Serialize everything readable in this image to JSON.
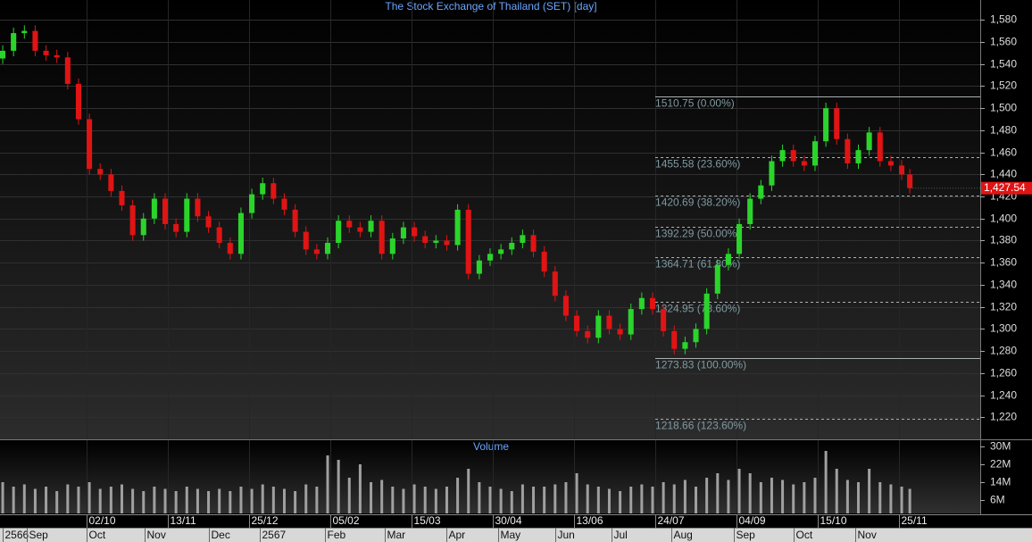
{
  "chart_data": {
    "type": "candlestick",
    "title": "The Stock Exchange of Thailand (SET) [day]",
    "x": [
      0,
      4,
      8,
      12,
      16,
      20,
      24,
      28,
      32,
      36,
      40,
      44,
      48,
      52,
      56,
      60,
      64,
      68,
      72,
      76,
      80,
      84,
      88,
      92,
      96,
      100,
      104,
      108,
      112,
      116,
      120,
      124,
      128,
      132,
      136,
      140,
      144,
      148,
      152,
      156,
      160,
      164,
      168,
      172,
      176,
      180,
      184,
      188,
      192,
      196,
      200,
      204,
      208,
      212,
      216,
      220,
      224,
      228,
      232,
      236,
      240,
      244,
      248,
      252,
      256,
      260,
      264,
      268,
      272,
      276,
      280,
      284,
      288,
      292,
      296,
      300,
      304,
      308,
      312,
      316,
      320,
      324,
      328,
      332,
      335
    ],
    "open": [
      1545,
      1552,
      1568,
      1570,
      1552,
      1548,
      1546,
      1522,
      1490,
      1445,
      1440,
      1425,
      1412,
      1385,
      1400,
      1418,
      1395,
      1388,
      1418,
      1402,
      1392,
      1378,
      1368,
      1405,
      1422,
      1432,
      1418,
      1408,
      1388,
      1372,
      1368,
      1378,
      1398,
      1392,
      1388,
      1398,
      1368,
      1382,
      1392,
      1384,
      1378,
      1380,
      1376,
      1408,
      1350,
      1362,
      1368,
      1372,
      1378,
      1385,
      1370,
      1352,
      1330,
      1312,
      1298,
      1292,
      1312,
      1300,
      1295,
      1318,
      1328,
      1318,
      1298,
      1282,
      1288,
      1300,
      1332,
      1358,
      1368,
      1395,
      1418,
      1430,
      1452,
      1462,
      1452,
      1448,
      1470,
      1500,
      1472,
      1450,
      1462,
      1478,
      1452,
      1448,
      1440
    ],
    "high": [
      1557,
      1573,
      1575,
      1575,
      1557,
      1553,
      1551,
      1527,
      1495,
      1450,
      1445,
      1430,
      1417,
      1405,
      1423,
      1423,
      1400,
      1423,
      1423,
      1407,
      1397,
      1383,
      1410,
      1427,
      1437,
      1437,
      1423,
      1413,
      1393,
      1377,
      1383,
      1403,
      1403,
      1397,
      1403,
      1403,
      1387,
      1397,
      1397,
      1389,
      1385,
      1385,
      1413,
      1413,
      1367,
      1373,
      1377,
      1383,
      1390,
      1390,
      1375,
      1357,
      1335,
      1317,
      1303,
      1317,
      1317,
      1305,
      1323,
      1333,
      1333,
      1323,
      1303,
      1293,
      1305,
      1337,
      1363,
      1373,
      1400,
      1423,
      1435,
      1457,
      1467,
      1467,
      1457,
      1475,
      1505,
      1505,
      1477,
      1467,
      1483,
      1483,
      1457,
      1453,
      1445
    ],
    "low": [
      1540,
      1547,
      1563,
      1547,
      1543,
      1541,
      1517,
      1485,
      1440,
      1435,
      1420,
      1407,
      1380,
      1380,
      1395,
      1390,
      1383,
      1383,
      1397,
      1387,
      1373,
      1363,
      1363,
      1400,
      1417,
      1413,
      1403,
      1383,
      1367,
      1363,
      1363,
      1373,
      1387,
      1383,
      1383,
      1363,
      1363,
      1377,
      1379,
      1373,
      1373,
      1371,
      1371,
      1345,
      1345,
      1357,
      1363,
      1367,
      1373,
      1365,
      1347,
      1325,
      1307,
      1293,
      1287,
      1287,
      1295,
      1290,
      1290,
      1313,
      1313,
      1293,
      1277,
      1277,
      1283,
      1295,
      1327,
      1353,
      1363,
      1390,
      1413,
      1425,
      1447,
      1447,
      1443,
      1443,
      1465,
      1467,
      1445,
      1445,
      1457,
      1447,
      1443,
      1435,
      1422.54
    ],
    "close": [
      1552,
      1568,
      1570,
      1552,
      1548,
      1546,
      1522,
      1490,
      1445,
      1440,
      1425,
      1412,
      1385,
      1400,
      1418,
      1395,
      1388,
      1418,
      1402,
      1392,
      1378,
      1368,
      1405,
      1422,
      1432,
      1418,
      1408,
      1388,
      1372,
      1368,
      1378,
      1398,
      1392,
      1388,
      1398,
      1368,
      1382,
      1392,
      1384,
      1378,
      1380,
      1376,
      1408,
      1350,
      1362,
      1368,
      1372,
      1378,
      1385,
      1370,
      1352,
      1330,
      1312,
      1298,
      1292,
      1312,
      1300,
      1295,
      1318,
      1328,
      1318,
      1298,
      1282,
      1288,
      1300,
      1332,
      1358,
      1368,
      1395,
      1418,
      1430,
      1452,
      1462,
      1452,
      1448,
      1470,
      1500,
      1472,
      1450,
      1462,
      1478,
      1452,
      1448,
      1440,
      1427.54
    ],
    "up_color": "#2bd42b",
    "down_color": "#e01414",
    "xlim": [
      -1,
      361
    ],
    "ylim": [
      1200,
      1598
    ],
    "yticks": [
      {
        "value": 1220,
        "label": "1,220"
      },
      {
        "value": 1240,
        "label": "1,240"
      },
      {
        "value": 1260,
        "label": "1,260"
      },
      {
        "value": 1280,
        "label": "1,280"
      },
      {
        "value": 1300,
        "label": "1,300"
      },
      {
        "value": 1320,
        "label": "1,320"
      },
      {
        "value": 1340,
        "label": "1,340"
      },
      {
        "value": 1360,
        "label": "1,360"
      },
      {
        "value": 1380,
        "label": "1,380"
      },
      {
        "value": 1400,
        "label": "1,400"
      },
      {
        "value": 1420,
        "label": "1,420"
      },
      {
        "value": 1440,
        "label": "1,440"
      },
      {
        "value": 1460,
        "label": "1,460"
      },
      {
        "value": 1480,
        "label": "1,480"
      },
      {
        "value": 1500,
        "label": "1,500"
      },
      {
        "value": 1520,
        "label": "1,520"
      },
      {
        "value": 1540,
        "label": "1,540"
      },
      {
        "value": 1560,
        "label": "1,560"
      },
      {
        "value": 1580,
        "label": "1,580"
      }
    ],
    "xticks": [
      {
        "value": 31,
        "label": "02/10"
      },
      {
        "value": 61,
        "label": "13/11"
      },
      {
        "value": 91,
        "label": "25/12"
      },
      {
        "value": 121,
        "label": "05/02"
      },
      {
        "value": 151,
        "label": "15/03"
      },
      {
        "value": 181,
        "label": "30/04"
      },
      {
        "value": 211,
        "label": "13/06"
      },
      {
        "value": 241,
        "label": "24/07"
      },
      {
        "value": 271,
        "label": "04/09"
      },
      {
        "value": 301,
        "label": "15/10"
      },
      {
        "value": 331,
        "label": "25/11"
      }
    ],
    "month_ticks": [
      {
        "value": 0,
        "label": "2566"
      },
      {
        "value": 9,
        "label": "Sep"
      },
      {
        "value": 31,
        "label": "Oct"
      },
      {
        "value": 52.5,
        "label": "Nov"
      },
      {
        "value": 76,
        "label": "Dec"
      },
      {
        "value": 95,
        "label": "2567"
      },
      {
        "value": 119,
        "label": "Feb"
      },
      {
        "value": 141,
        "label": "Mar"
      },
      {
        "value": 164,
        "label": "Apr"
      },
      {
        "value": 183,
        "label": "May"
      },
      {
        "value": 204,
        "label": "Jun"
      },
      {
        "value": 225,
        "label": "Jul"
      },
      {
        "value": 247,
        "label": "Aug"
      },
      {
        "value": 270,
        "label": "Sep"
      },
      {
        "value": 292,
        "label": "Oct"
      },
      {
        "value": 315,
        "label": "Nov"
      }
    ],
    "grid": true,
    "last_price": {
      "value": 1427.54,
      "label": "1,427.54"
    },
    "fibonacci": {
      "start_x": 241,
      "color": "#aab0b0",
      "label_color": "#7f9aa3",
      "levels": [
        {
          "value": 1510.75,
          "label": "1510.75 (0.00%)",
          "style": "solid"
        },
        {
          "value": 1455.58,
          "label": "1455.58 (23.60%)",
          "style": "dashed"
        },
        {
          "value": 1420.69,
          "label": "1420.69 (38.20%)",
          "style": "dashed"
        },
        {
          "value": 1392.29,
          "label": "1392.29 (50.00%)",
          "style": "dashed"
        },
        {
          "value": 1364.71,
          "label": "1364.71 (61.80%)",
          "style": "dashed"
        },
        {
          "value": 1324.95,
          "label": "1324.95 (78.60%)",
          "style": "dashed"
        },
        {
          "value": 1273.83,
          "label": "1273.83 (100.00%)",
          "style": "solid"
        },
        {
          "value": 1218.66,
          "label": "1218.66 (123.60%)",
          "style": "dashed"
        }
      ]
    },
    "volume": {
      "title": "Volume",
      "color": "#a0a0a0",
      "values": [
        14000000,
        12000000,
        13000000,
        11000000,
        12000000,
        10000000,
        13000000,
        12000000,
        14000000,
        11000000,
        12000000,
        13000000,
        11000000,
        10000000,
        12000000,
        11000000,
        10000000,
        12000000,
        11000000,
        10000000,
        11000000,
        10000000,
        12000000,
        11000000,
        13000000,
        12000000,
        11000000,
        10000000,
        13000000,
        12000000,
        26000000,
        24000000,
        16000000,
        22000000,
        14000000,
        15000000,
        12000000,
        11000000,
        13000000,
        12000000,
        11000000,
        12000000,
        16000000,
        20000000,
        14000000,
        12000000,
        11000000,
        10000000,
        13000000,
        12000000,
        12000000,
        13000000,
        14000000,
        18000000,
        13000000,
        12000000,
        11000000,
        10000000,
        12000000,
        13000000,
        12000000,
        14000000,
        13000000,
        15000000,
        12000000,
        16000000,
        18000000,
        15000000,
        20000000,
        18000000,
        14000000,
        16000000,
        15000000,
        13000000,
        14000000,
        16000000,
        28000000,
        20000000,
        15000000,
        14000000,
        20000000,
        14000000,
        13000000,
        12000000,
        11000000
      ],
      "ylim": [
        0,
        32800000
      ],
      "yticks": [
        {
          "value": 6000000,
          "label": "6M"
        },
        {
          "value": 14000000,
          "label": "14M"
        },
        {
          "value": 22000000,
          "label": "22M"
        },
        {
          "value": 30000000,
          "label": "30M"
        }
      ]
    }
  }
}
